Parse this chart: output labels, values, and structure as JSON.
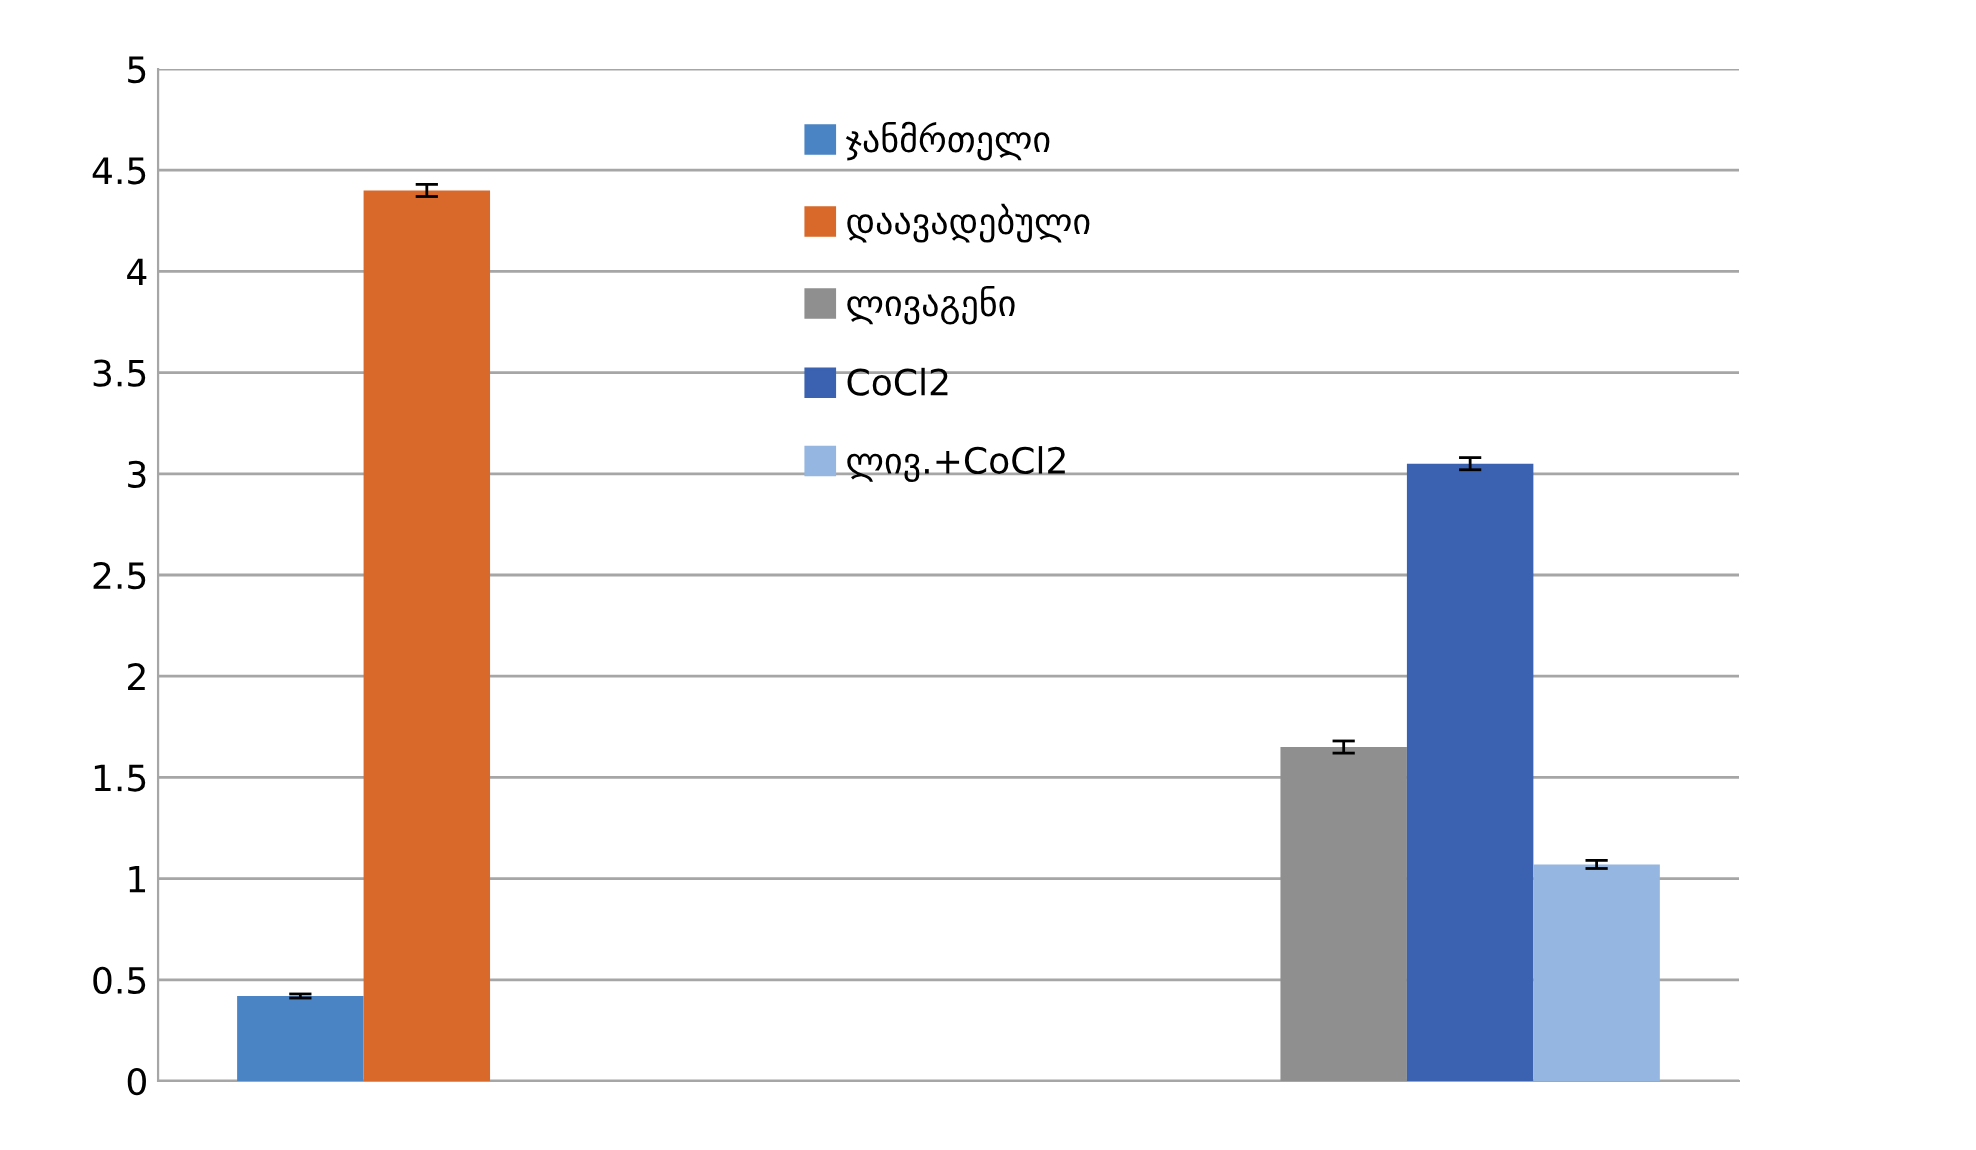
{
  "chart_data": {
    "type": "bar",
    "categories": [
      null,
      null
    ],
    "series": [
      {
        "name": "ჯანმრთელი",
        "color": "#4a84c4",
        "values": [
          0.42,
          null
        ],
        "errors": [
          0.01,
          null
        ]
      },
      {
        "name": "დაავადებული",
        "color": "#d8692a",
        "values": [
          4.4,
          null
        ],
        "errors": [
          0.03,
          null
        ]
      },
      {
        "name": "ლივაგენი",
        "color": "#8f8f8f",
        "values": [
          null,
          1.65
        ],
        "errors": [
          null,
          0.03
        ]
      },
      {
        "name": "CoCl2",
        "color": "#3a62b0",
        "values": [
          null,
          3.05
        ],
        "errors": [
          null,
          0.03
        ]
      },
      {
        "name": "ლივ.+CoCl2",
        "color": "#94b6e0",
        "values": [
          null,
          1.07
        ],
        "errors": [
          null,
          0.02
        ]
      }
    ],
    "ylim": [
      0,
      5
    ],
    "yticks": [
      0,
      0.5,
      1,
      1.5,
      2,
      2.5,
      3,
      3.5,
      4,
      4.5,
      5
    ],
    "grid": "y",
    "legend": "top"
  }
}
